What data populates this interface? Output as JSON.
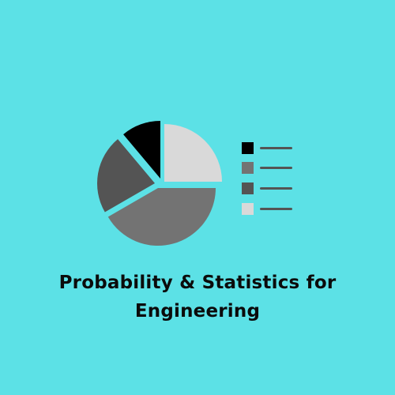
{
  "background_color": "#5ce1e6",
  "title": {
    "line1": "Probability & Statistics for",
    "line2": "Engineering"
  },
  "illustration": {
    "icon": "pie-chart-icon",
    "slice_colors": [
      "#000000",
      "#545454",
      "#737373",
      "#d9d9d9"
    ],
    "legend_colors": [
      "#000000",
      "#737373",
      "#545454",
      "#d9d9d9"
    ],
    "legend_line_color": "#545454"
  }
}
